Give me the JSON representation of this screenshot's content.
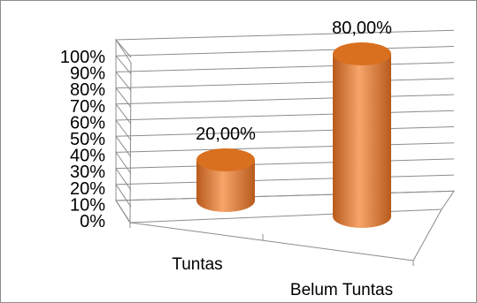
{
  "chart_data": {
    "type": "bar",
    "style": "3d-cylinder",
    "categories": [
      "Tuntas",
      "Belum Tuntas"
    ],
    "values": [
      20,
      80
    ],
    "data_labels": [
      "20,00%",
      "80,00%"
    ],
    "y_ticks": [
      "0%",
      "10%",
      "20%",
      "30%",
      "40%",
      "50%",
      "60%",
      "70%",
      "80%",
      "90%",
      "100%"
    ],
    "ylim": [
      0,
      100
    ],
    "grid": true,
    "legend": "none",
    "title": "",
    "xlabel": "",
    "ylabel": "",
    "bar_color": "#ED7D31",
    "bar_shade_color": "#B85A1C",
    "bar_highlight_color": "#F6A56B",
    "bar_top_color": "#D9701F"
  }
}
